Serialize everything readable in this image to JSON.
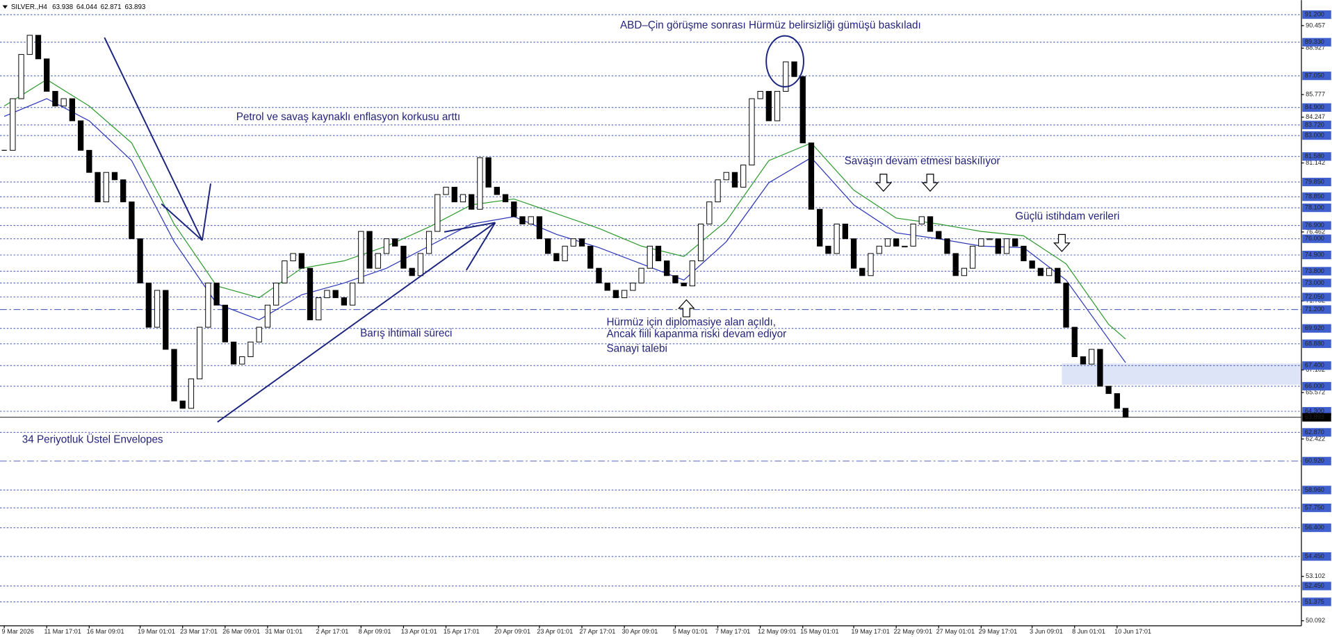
{
  "header": {
    "symbol": "SILVER.,H4",
    "ohlc": [
      63.938,
      64.044,
      62.871,
      63.893
    ]
  },
  "chart_data": {
    "type": "candlestick",
    "categories": [
      "9 Mar 2026",
      null,
      null,
      null,
      null,
      "11 Mar 17:01",
      null,
      null,
      null,
      null,
      "16 Mar 09:01",
      null,
      null,
      null,
      null,
      null,
      "19 Mar 01:01",
      null,
      null,
      null,
      null,
      "23 Mar 17:01",
      null,
      null,
      null,
      null,
      "26 Mar 09:01",
      null,
      null,
      null,
      null,
      "31 Mar 01:01",
      null,
      null,
      null,
      null,
      null,
      "2 Apr 17:01",
      null,
      null,
      null,
      null,
      "8 Apr 09:01",
      null,
      null,
      null,
      null,
      "13 Apr 01:01",
      null,
      null,
      null,
      null,
      "15 Apr 17:01",
      null,
      null,
      null,
      null,
      null,
      "20 Apr 09:01",
      null,
      null,
      null,
      null,
      "23 Apr 01:01",
      null,
      null,
      null,
      null,
      "27 Apr 17:01",
      null,
      null,
      null,
      null,
      "30 Apr 09:01",
      null,
      null,
      null,
      null,
      null,
      "5 May 01:01",
      null,
      null,
      null,
      null,
      "7 May 17:01",
      null,
      null,
      null,
      null,
      "12 May 09:01",
      null,
      null,
      null,
      null,
      "15 May 01:01",
      null,
      null,
      null,
      null,
      null,
      "19 May 17:01",
      null,
      null,
      null,
      null,
      "22 May 09:01",
      null,
      null,
      null,
      null,
      "27 May 01:01",
      null,
      null,
      null,
      null,
      "29 May 17:01",
      null,
      null,
      null,
      null,
      null,
      "3 Jun 09:01",
      null,
      null,
      null,
      null,
      "8 Jun 01:01",
      null,
      null,
      null,
      null,
      "10 Jun 17:01",
      null
    ],
    "values": [
      82,
      85.5,
      88.5,
      89.8,
      88.2,
      86,
      85,
      85.5,
      84,
      82,
      80.5,
      78.5,
      80.5,
      80,
      78.5,
      76,
      73,
      70,
      72.5,
      68.5,
      65,
      64.5,
      66.5,
      70,
      73,
      71.5,
      69,
      67.5,
      68,
      69,
      70,
      71.5,
      73,
      74.5,
      75,
      74,
      70.5,
      72,
      72.5,
      72,
      71.5,
      73,
      76.5,
      74,
      75,
      76,
      75.5,
      74,
      73.5,
      75,
      76.5,
      79,
      79.5,
      78.5,
      79,
      78,
      81.5,
      79.5,
      79,
      78.5,
      77.5,
      77,
      77.5,
      76,
      75,
      74.5,
      75.5,
      76,
      75.5,
      74,
      73,
      72.5,
      72,
      72.5,
      73,
      74,
      75.5,
      74.5,
      73.5,
      73,
      72.8,
      74.5,
      77,
      78.5,
      80,
      80.5,
      79.5,
      81,
      85.5,
      86,
      84,
      86,
      88,
      87,
      82.5,
      78,
      75.5,
      75,
      77,
      76,
      74,
      73.5,
      75,
      75.5,
      76,
      75.5,
      75.5,
      77,
      77.5,
      76.5,
      76,
      75,
      73.5,
      74,
      75.5,
      76,
      76,
      75,
      76,
      75.5,
      74.5,
      74,
      73.5,
      74,
      73,
      70,
      68,
      67.5,
      68.5,
      66,
      65.5,
      64.5,
      63.893
    ],
    "series": [
      {
        "color": "#2e9a2e",
        "x": [
          0,
          5,
          10,
          15,
          20,
          25,
          30,
          35,
          40,
          45,
          50,
          55,
          60,
          65,
          70,
          75,
          80,
          85,
          90,
          95,
          100,
          105,
          110,
          115,
          120,
          125,
          130,
          132
        ],
        "values": [
          85,
          86.8,
          85,
          82.5,
          77,
          72.8,
          72,
          74,
          74.5,
          75.5,
          76.8,
          78.3,
          78.7,
          77.7,
          76.7,
          75.5,
          74.8,
          77.2,
          81.3,
          82.5,
          79.3,
          77.4,
          77,
          76.5,
          76.2,
          74.3,
          70.2,
          69.2
        ]
      },
      {
        "color": "#2a35b8",
        "x": [
          0,
          5,
          10,
          15,
          20,
          25,
          30,
          35,
          40,
          45,
          50,
          55,
          60,
          65,
          70,
          75,
          80,
          85,
          90,
          95,
          100,
          105,
          110,
          115,
          120,
          125,
          130,
          132
        ],
        "values": [
          84.3,
          85.5,
          84,
          81.3,
          75.8,
          71.6,
          70.5,
          72.2,
          73,
          74,
          75.5,
          77,
          77.5,
          76.3,
          75.4,
          74.3,
          73.2,
          75.8,
          79.8,
          81.5,
          78.3,
          76.4,
          76,
          75.5,
          75.4,
          73.2,
          69.2,
          67.6
        ]
      }
    ],
    "ylim": [
      49.58,
      92.18
    ],
    "yticks": [
      90.457,
      88.927,
      85.777,
      84.247,
      81.142,
      76.462,
      71.782,
      67.102,
      65.572,
      62.422,
      53.102,
      {
        "value": 50.092,
        "label": "50.092"
      }
    ],
    "levels": [
      {
        "value": 91.2,
        "label": "91.200"
      },
      {
        "value": 89.33,
        "label": "89.330"
      },
      {
        "value": 87.05,
        "label": "87.050"
      },
      {
        "value": 84.9,
        "label": "84.900"
      },
      {
        "value": 83.72,
        "label": "83.720"
      },
      {
        "value": 83,
        "label": "83.000"
      },
      {
        "value": 81.58,
        "label": "81.580"
      },
      {
        "value": 79.85,
        "label": "79.850"
      },
      {
        "value": 78.85,
        "label": "78.850"
      },
      {
        "value": 78.1,
        "label": "78.100"
      },
      {
        "value": 76.9,
        "label": "76.900"
      },
      {
        "value": 76,
        "label": "76.000"
      },
      {
        "value": 74.9,
        "label": "74.900"
      },
      {
        "value": 73.8,
        "label": "73.800"
      },
      {
        "value": 73,
        "label": "73.000"
      },
      {
        "value": 72.05,
        "label": "72.050"
      },
      {
        "value": 71.2,
        "label": "71.200",
        "line_style": "dashdot"
      },
      {
        "value": 69.92,
        "label": "69.920"
      },
      {
        "value": 68.88,
        "label": "68.880"
      },
      {
        "value": 67.4,
        "label": "67.400"
      },
      {
        "value": 66,
        "label": "66.000"
      },
      {
        "value": 64.3,
        "label": "64.300"
      },
      {
        "value": 62.87,
        "label": "62.870"
      },
      {
        "value": 60.92,
        "label": "60.920",
        "line_style": "dashdot"
      },
      {
        "value": 58.96,
        "label": "58.960"
      },
      {
        "value": 57.75,
        "label": "57.750"
      },
      {
        "value": 56.4,
        "label": "56.400"
      },
      {
        "value": 54.45,
        "label": "54.450"
      },
      {
        "value": 52.45,
        "label": "52.450"
      },
      {
        "value": 51.375,
        "label": "51.375"
      }
    ],
    "last_price": 63.893,
    "annotations": [
      "ABD–Çin görüşme sonrası Hürmüz belirsizliği gümüşü baskıladı",
      "Petrol ve savaş kaynaklı enflasyon korkusu arttı",
      "Savaşın devam etmesi baskılıyor",
      "Güçlü istihdam verileri",
      "Hürmüz için diplomasiye alan açıldı,",
      "Ancak fiili kapanma riski devam ediyor",
      "Sanayi talebi",
      "Barış ihtimali süreci",
      "34 Periyotluk Üstel Envelopes"
    ]
  }
}
